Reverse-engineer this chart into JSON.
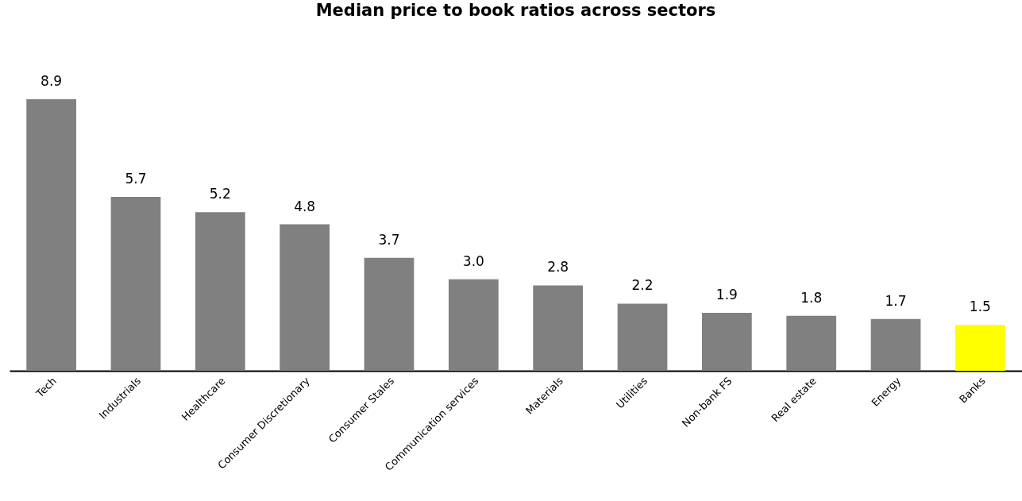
{
  "chart_data": {
    "type": "bar",
    "title": "Median price to book ratios across sectors",
    "categories": [
      "Tech",
      "Industrials",
      "Healthcare",
      "Consumer Discretionary",
      "Consumer Stales",
      "Communication services",
      "Materials",
      "Utilities",
      "Non-bank FS",
      "Real estate",
      "Energy",
      "Banks"
    ],
    "values": [
      8.9,
      5.7,
      5.2,
      4.8,
      3.7,
      3.0,
      2.8,
      2.2,
      1.9,
      1.8,
      1.7,
      1.5
    ],
    "value_labels": [
      "8.9",
      "5.7",
      "5.2",
      "4.8",
      "3.7",
      "3.0",
      "2.8",
      "2.2",
      "1.9",
      "1.8",
      "1.7",
      "1.5"
    ],
    "colors": [
      "#808080",
      "#808080",
      "#808080",
      "#808080",
      "#808080",
      "#808080",
      "#808080",
      "#808080",
      "#808080",
      "#808080",
      "#808080",
      "#ffff00"
    ]
  }
}
